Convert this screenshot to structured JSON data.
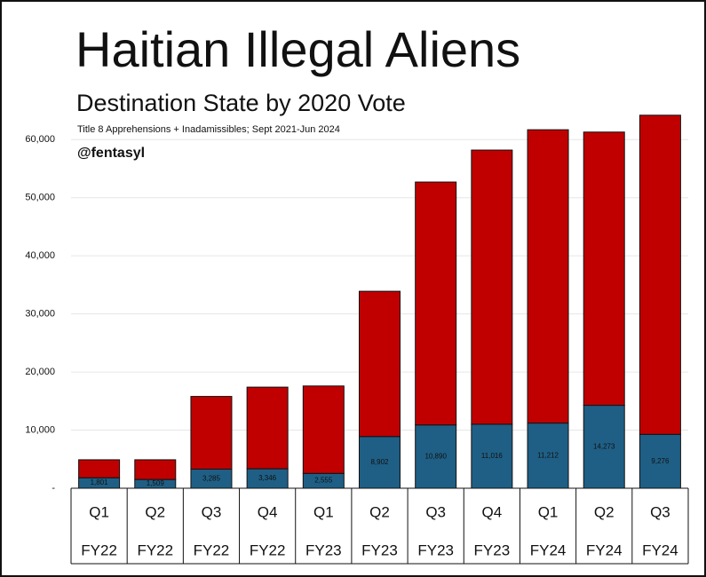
{
  "chart_data": {
    "type": "stacked-bar",
    "title": "Haitian Illegal Aliens",
    "subtitle": "Destination State by 2020 Vote",
    "note": "Title 8 Apprehensions + Inadamissibles; Sept 2021-Jun 2024",
    "credit": "@fentasyl",
    "categories": [
      "Q1",
      "Q2",
      "Q3",
      "Q4",
      "Q1",
      "Q2",
      "Q3",
      "Q4",
      "Q1",
      "Q2",
      "Q3"
    ],
    "category_years": [
      "FY22",
      "FY22",
      "FY22",
      "FY22",
      "FY23",
      "FY23",
      "FY23",
      "FY23",
      "FY24",
      "FY24",
      "FY24"
    ],
    "series": [
      {
        "color": "#1f5f85",
        "values": [
          1801,
          1509,
          3285,
          3346,
          2555,
          8902,
          10890,
          11016,
          11212,
          14273,
          9276
        ],
        "value_labels": [
          "1,801",
          "1,509",
          "3,285",
          "3,346",
          "2,555",
          "8,902",
          "10,890",
          "11,016",
          "11,212",
          "14,273",
          "9,276"
        ]
      },
      {
        "color": "#c00000",
        "values": [
          3099,
          3391,
          12515,
          14054,
          15045,
          24998,
          41810,
          47184,
          50488,
          47027,
          54924
        ]
      }
    ],
    "ylim": [
      0,
      66000
    ],
    "yticks": [
      {
        "value": 0,
        "label": "-"
      },
      {
        "value": 10000,
        "label": "10,000"
      },
      {
        "value": 20000,
        "label": "20,000"
      },
      {
        "value": 30000,
        "label": "30,000"
      },
      {
        "value": 40000,
        "label": "40,000"
      },
      {
        "value": 50000,
        "label": "50,000"
      },
      {
        "value": 60000,
        "label": "60,000"
      }
    ],
    "grid": true
  }
}
